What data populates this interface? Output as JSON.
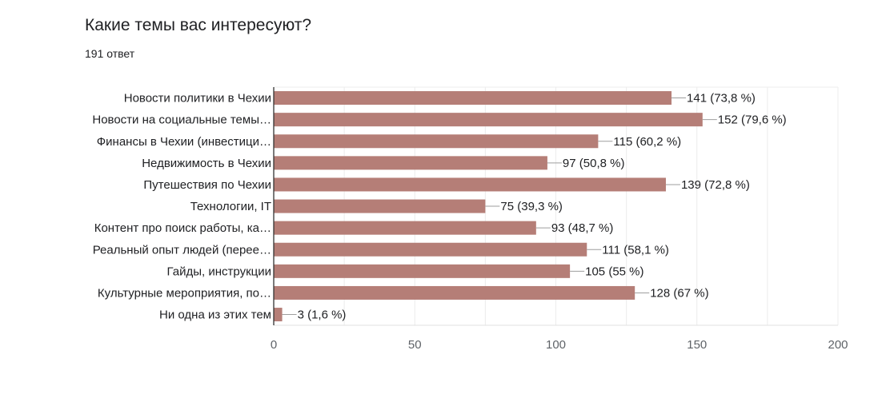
{
  "question": {
    "title": "Какие темы вас интересуют?",
    "responses": "191 ответ"
  },
  "chart_data": {
    "type": "bar",
    "orientation": "horizontal",
    "categories": [
      "Новости политики в Чехии",
      "Новости на социальные темы…",
      "Финансы в Чехии (инвестици…",
      "Недвижимость в Чехии",
      "Путешествия по Чехии",
      "Технологии, IT",
      "Контент про поиск работы, ка…",
      "Реальный опыт людей (перее…",
      "Гайды, инструкции",
      "Культурные мероприятия, по…",
      "Ни одна из этих тем"
    ],
    "values": [
      141,
      152,
      115,
      97,
      139,
      75,
      93,
      111,
      105,
      128,
      3
    ],
    "data_labels": [
      "141 (73,8 %)",
      "152 (79,6 %)",
      "115 (60,2 %)",
      "97 (50,8 %)",
      "139 (72,8 %)",
      "75 (39,3 %)",
      "93 (48,7 %)",
      "111 (58,1 %)",
      "105 (55 %)",
      "128 (67 %)",
      "3 (1,6 %)"
    ],
    "x_ticks": [
      "0",
      "50",
      "100",
      "150",
      "200"
    ],
    "xlim": [
      0,
      200
    ],
    "grid": true,
    "bar_color": "#b57e77"
  }
}
